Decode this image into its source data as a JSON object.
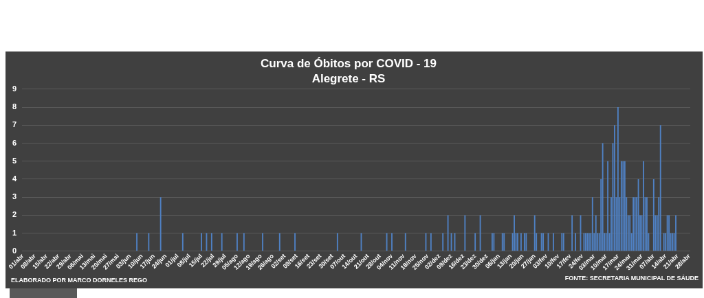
{
  "chart_data": {
    "type": "bar",
    "title": "Curva de Óbitos por COVID - 19",
    "subtitle": "Alegrete - RS",
    "categories": [
      "01/abr",
      null,
      null,
      null,
      null,
      null,
      null,
      "08/abr",
      null,
      null,
      null,
      null,
      null,
      null,
      "15/abr",
      null,
      null,
      null,
      null,
      null,
      null,
      "22/abr",
      null,
      null,
      null,
      null,
      null,
      null,
      "29/abr",
      null,
      null,
      null,
      null,
      null,
      null,
      "06/mai",
      null,
      null,
      null,
      null,
      null,
      null,
      "13/mai",
      null,
      null,
      null,
      null,
      null,
      null,
      "20/mai",
      null,
      null,
      null,
      null,
      null,
      null,
      "27/mai",
      null,
      null,
      null,
      null,
      null,
      null,
      "03/jun",
      null,
      null,
      null,
      null,
      null,
      null,
      "10/jun",
      null,
      null,
      null,
      null,
      null,
      null,
      "17/jun",
      null,
      null,
      null,
      null,
      null,
      null,
      "24/jun",
      null,
      null,
      null,
      null,
      null,
      null,
      "01/jul",
      null,
      null,
      null,
      null,
      null,
      null,
      "08/jul",
      null,
      null,
      null,
      null,
      null,
      null,
      "15/jul",
      null,
      null,
      null,
      null,
      null,
      null,
      "22/jul",
      null,
      null,
      null,
      null,
      null,
      null,
      "29/jul",
      null,
      null,
      null,
      null,
      null,
      null,
      "05/ago",
      null,
      null,
      null,
      null,
      null,
      null,
      "12/ago",
      null,
      null,
      null,
      null,
      null,
      null,
      "19/ago",
      null,
      null,
      null,
      null,
      null,
      null,
      "26/ago",
      null,
      null,
      null,
      null,
      null,
      null,
      "02/set",
      null,
      null,
      null,
      null,
      null,
      null,
      "09/set",
      null,
      null,
      null,
      null,
      null,
      null,
      "16/set",
      null,
      null,
      null,
      null,
      null,
      null,
      "23/set",
      null,
      null,
      null,
      null,
      null,
      null,
      "30/set",
      null,
      null,
      null,
      null,
      null,
      null,
      "07/out",
      null,
      null,
      null,
      null,
      null,
      null,
      "14/out",
      null,
      null,
      null,
      null,
      null,
      null,
      "21/out",
      null,
      null,
      null,
      null,
      null,
      null,
      "28/out",
      null,
      null,
      null,
      null,
      null,
      null,
      "04/nov",
      null,
      null,
      null,
      null,
      null,
      null,
      "11/nov",
      null,
      null,
      null,
      null,
      null,
      null,
      "18/nov",
      null,
      null,
      null,
      null,
      null,
      null,
      "25/nov",
      null,
      null,
      null,
      null,
      null,
      null,
      "02/dez",
      null,
      null,
      null,
      null,
      null,
      null,
      "09/dez",
      null,
      null,
      null,
      null,
      null,
      null,
      "16/dez",
      null,
      null,
      null,
      null,
      null,
      null,
      "23/dez",
      null,
      null,
      null,
      null,
      null,
      null,
      "30/dez",
      null,
      null,
      null,
      null,
      null,
      null,
      "06/jan",
      null,
      null,
      null,
      null,
      null,
      null,
      "13/jan",
      null,
      null,
      null,
      null,
      null,
      null,
      "20/jan",
      null,
      null,
      null,
      null,
      null,
      null,
      "27/jan",
      null,
      null,
      null,
      null,
      null,
      null,
      "03/fev",
      null,
      null,
      null,
      null,
      null,
      null,
      "10/fev",
      null,
      null,
      null,
      null,
      null,
      null,
      "17/fev",
      null,
      null,
      null,
      null,
      null,
      null,
      "24/fev",
      null,
      null,
      null,
      null,
      null,
      null,
      "03/mar",
      null,
      null,
      null,
      null,
      null,
      null,
      "10/mar",
      null,
      null,
      null,
      null,
      null,
      null,
      "17/mar",
      null,
      null,
      null,
      null,
      null,
      null,
      "24/mar",
      null,
      null,
      null,
      null,
      null,
      null,
      "31/mar",
      null,
      null,
      null,
      null,
      null,
      null,
      "07/abr",
      null,
      null,
      null,
      null,
      null,
      null,
      "14/abr",
      null,
      null,
      null,
      null,
      null,
      null,
      "21/abr",
      null,
      null,
      null,
      null,
      null,
      null,
      "28/abr"
    ],
    "values": [
      0,
      0,
      0,
      0,
      0,
      0,
      0,
      0,
      0,
      0,
      0,
      0,
      0,
      0,
      0,
      0,
      0,
      0,
      0,
      0,
      0,
      0,
      0,
      0,
      0,
      0,
      0,
      0,
      0,
      0,
      0,
      0,
      0,
      0,
      0,
      0,
      0,
      0,
      0,
      0,
      0,
      0,
      0,
      0,
      0,
      0,
      0,
      0,
      0,
      0,
      0,
      0,
      0,
      0,
      0,
      0,
      0,
      0,
      0,
      0,
      0,
      0,
      0,
      0,
      0,
      0,
      0,
      1,
      0,
      0,
      0,
      0,
      0,
      0,
      1,
      0,
      0,
      0,
      0,
      0,
      0,
      3,
      0,
      0,
      0,
      0,
      0,
      0,
      0,
      0,
      0,
      0,
      0,
      0,
      1,
      0,
      0,
      0,
      0,
      0,
      0,
      0,
      0,
      0,
      0,
      1,
      0,
      0,
      1,
      0,
      0,
      1,
      0,
      0,
      0,
      0,
      0,
      1,
      0,
      0,
      0,
      0,
      0,
      0,
      0,
      0,
      1,
      0,
      0,
      0,
      1,
      0,
      0,
      0,
      0,
      0,
      0,
      0,
      0,
      0,
      0,
      1,
      0,
      0,
      0,
      0,
      0,
      0,
      0,
      0,
      0,
      1,
      0,
      0,
      0,
      0,
      0,
      0,
      0,
      0,
      1,
      0,
      0,
      0,
      0,
      0,
      0,
      0,
      0,
      0,
      0,
      0,
      0,
      0,
      0,
      0,
      0,
      0,
      0,
      0,
      0,
      0,
      0,
      0,
      0,
      1,
      0,
      0,
      0,
      0,
      0,
      0,
      0,
      0,
      0,
      0,
      0,
      0,
      0,
      1,
      0,
      0,
      0,
      0,
      0,
      0,
      0,
      0,
      0,
      0,
      0,
      0,
      0,
      0,
      1,
      0,
      0,
      1,
      0,
      0,
      0,
      0,
      0,
      0,
      0,
      1,
      0,
      0,
      0,
      0,
      0,
      0,
      0,
      0,
      0,
      0,
      0,
      1,
      0,
      0,
      1,
      0,
      0,
      0,
      0,
      0,
      0,
      1,
      0,
      0,
      2,
      0,
      1,
      0,
      1,
      0,
      0,
      0,
      0,
      0,
      2,
      0,
      0,
      0,
      0,
      0,
      1,
      0,
      0,
      2,
      0,
      0,
      0,
      0,
      0,
      0,
      1,
      1,
      0,
      0,
      0,
      0,
      1,
      1,
      0,
      0,
      0,
      0,
      1,
      2,
      1,
      1,
      0,
      1,
      0,
      1,
      1,
      0,
      0,
      0,
      0,
      2,
      1,
      0,
      0,
      1,
      1,
      0,
      0,
      1,
      0,
      0,
      1,
      0,
      0,
      0,
      0,
      1,
      1,
      0,
      0,
      0,
      0,
      2,
      0,
      1,
      0,
      0,
      2,
      0,
      1,
      1,
      1,
      1,
      1,
      3,
      1,
      2,
      1,
      1,
      4,
      6,
      1,
      1,
      5,
      1,
      3,
      6,
      7,
      3,
      8,
      3,
      5,
      5,
      5,
      3,
      2,
      2,
      1,
      3,
      3,
      3,
      4,
      2,
      2,
      5,
      3,
      3,
      1,
      0,
      0,
      4,
      2,
      2,
      3,
      7,
      0,
      1,
      1,
      2,
      2,
      1,
      1,
      1,
      2,
      0,
      0,
      0,
      0,
      0,
      0,
      0,
      0
    ],
    "color": "#4f81c4",
    "ylim": [
      0,
      9
    ],
    "yticks": [
      0,
      1,
      2,
      3,
      4,
      5,
      6,
      7,
      8,
      9
    ],
    "grid": "y",
    "annotations": [
      "ELABORADO POR MARCO DORNELES REGO",
      "FONTE: SECRETARIA MUNICIPAL DE SÁUDE"
    ]
  }
}
